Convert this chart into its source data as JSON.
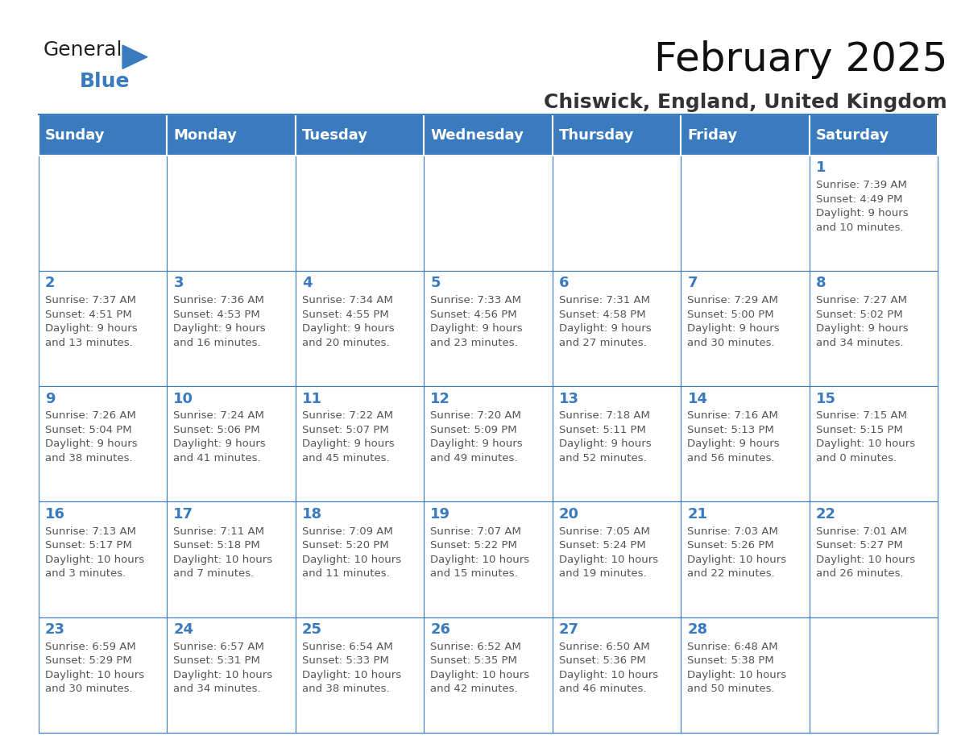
{
  "title": "February 2025",
  "subtitle": "Chiswick, England, United Kingdom",
  "header_color": "#3a7abf",
  "header_text_color": "#ffffff",
  "cell_bg_color": "#ffffff",
  "grid_line_color": "#3a7abf",
  "day_number_color": "#3a7abf",
  "cell_text_color": "#555555",
  "days_of_week": [
    "Sunday",
    "Monday",
    "Tuesday",
    "Wednesday",
    "Thursday",
    "Friday",
    "Saturday"
  ],
  "weeks": [
    [
      {
        "day": null,
        "info": null
      },
      {
        "day": null,
        "info": null
      },
      {
        "day": null,
        "info": null
      },
      {
        "day": null,
        "info": null
      },
      {
        "day": null,
        "info": null
      },
      {
        "day": null,
        "info": null
      },
      {
        "day": 1,
        "info": "Sunrise: 7:39 AM\nSunset: 4:49 PM\nDaylight: 9 hours\nand 10 minutes."
      }
    ],
    [
      {
        "day": 2,
        "info": "Sunrise: 7:37 AM\nSunset: 4:51 PM\nDaylight: 9 hours\nand 13 minutes."
      },
      {
        "day": 3,
        "info": "Sunrise: 7:36 AM\nSunset: 4:53 PM\nDaylight: 9 hours\nand 16 minutes."
      },
      {
        "day": 4,
        "info": "Sunrise: 7:34 AM\nSunset: 4:55 PM\nDaylight: 9 hours\nand 20 minutes."
      },
      {
        "day": 5,
        "info": "Sunrise: 7:33 AM\nSunset: 4:56 PM\nDaylight: 9 hours\nand 23 minutes."
      },
      {
        "day": 6,
        "info": "Sunrise: 7:31 AM\nSunset: 4:58 PM\nDaylight: 9 hours\nand 27 minutes."
      },
      {
        "day": 7,
        "info": "Sunrise: 7:29 AM\nSunset: 5:00 PM\nDaylight: 9 hours\nand 30 minutes."
      },
      {
        "day": 8,
        "info": "Sunrise: 7:27 AM\nSunset: 5:02 PM\nDaylight: 9 hours\nand 34 minutes."
      }
    ],
    [
      {
        "day": 9,
        "info": "Sunrise: 7:26 AM\nSunset: 5:04 PM\nDaylight: 9 hours\nand 38 minutes."
      },
      {
        "day": 10,
        "info": "Sunrise: 7:24 AM\nSunset: 5:06 PM\nDaylight: 9 hours\nand 41 minutes."
      },
      {
        "day": 11,
        "info": "Sunrise: 7:22 AM\nSunset: 5:07 PM\nDaylight: 9 hours\nand 45 minutes."
      },
      {
        "day": 12,
        "info": "Sunrise: 7:20 AM\nSunset: 5:09 PM\nDaylight: 9 hours\nand 49 minutes."
      },
      {
        "day": 13,
        "info": "Sunrise: 7:18 AM\nSunset: 5:11 PM\nDaylight: 9 hours\nand 52 minutes."
      },
      {
        "day": 14,
        "info": "Sunrise: 7:16 AM\nSunset: 5:13 PM\nDaylight: 9 hours\nand 56 minutes."
      },
      {
        "day": 15,
        "info": "Sunrise: 7:15 AM\nSunset: 5:15 PM\nDaylight: 10 hours\nand 0 minutes."
      }
    ],
    [
      {
        "day": 16,
        "info": "Sunrise: 7:13 AM\nSunset: 5:17 PM\nDaylight: 10 hours\nand 3 minutes."
      },
      {
        "day": 17,
        "info": "Sunrise: 7:11 AM\nSunset: 5:18 PM\nDaylight: 10 hours\nand 7 minutes."
      },
      {
        "day": 18,
        "info": "Sunrise: 7:09 AM\nSunset: 5:20 PM\nDaylight: 10 hours\nand 11 minutes."
      },
      {
        "day": 19,
        "info": "Sunrise: 7:07 AM\nSunset: 5:22 PM\nDaylight: 10 hours\nand 15 minutes."
      },
      {
        "day": 20,
        "info": "Sunrise: 7:05 AM\nSunset: 5:24 PM\nDaylight: 10 hours\nand 19 minutes."
      },
      {
        "day": 21,
        "info": "Sunrise: 7:03 AM\nSunset: 5:26 PM\nDaylight: 10 hours\nand 22 minutes."
      },
      {
        "day": 22,
        "info": "Sunrise: 7:01 AM\nSunset: 5:27 PM\nDaylight: 10 hours\nand 26 minutes."
      }
    ],
    [
      {
        "day": 23,
        "info": "Sunrise: 6:59 AM\nSunset: 5:29 PM\nDaylight: 10 hours\nand 30 minutes."
      },
      {
        "day": 24,
        "info": "Sunrise: 6:57 AM\nSunset: 5:31 PM\nDaylight: 10 hours\nand 34 minutes."
      },
      {
        "day": 25,
        "info": "Sunrise: 6:54 AM\nSunset: 5:33 PM\nDaylight: 10 hours\nand 38 minutes."
      },
      {
        "day": 26,
        "info": "Sunrise: 6:52 AM\nSunset: 5:35 PM\nDaylight: 10 hours\nand 42 minutes."
      },
      {
        "day": 27,
        "info": "Sunrise: 6:50 AM\nSunset: 5:36 PM\nDaylight: 10 hours\nand 46 minutes."
      },
      {
        "day": 28,
        "info": "Sunrise: 6:48 AM\nSunset: 5:38 PM\nDaylight: 10 hours\nand 50 minutes."
      },
      {
        "day": null,
        "info": null
      }
    ]
  ],
  "logo_text_general": "General",
  "logo_text_blue": "Blue",
  "logo_color_general": "#222222",
  "logo_color_blue": "#3a7abf",
  "logo_triangle_color": "#3a7abf",
  "title_fontsize": 36,
  "subtitle_fontsize": 18,
  "header_fontsize": 13,
  "day_num_fontsize": 13,
  "cell_text_fontsize": 9.5,
  "logo_fontsize_general": 18,
  "logo_fontsize_blue": 18
}
